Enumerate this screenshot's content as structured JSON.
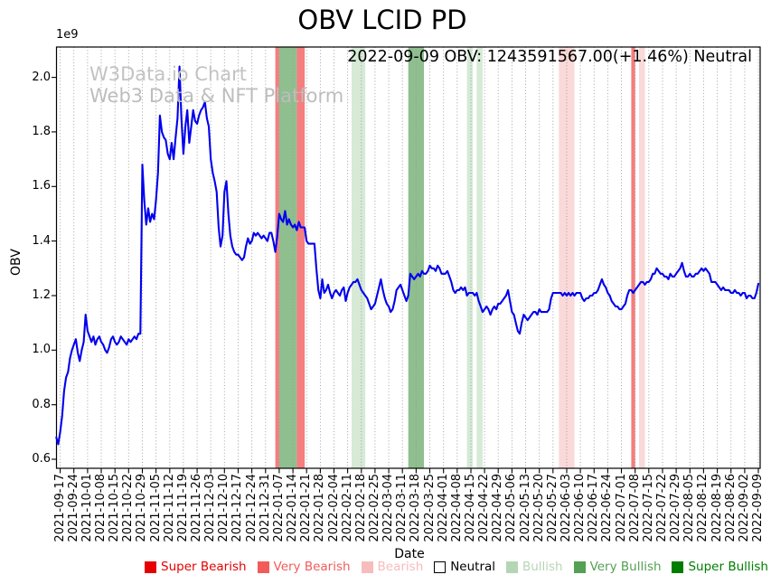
{
  "title": "OBV LCID PD",
  "subtitle": "2022-09-09 OBV: 1243591567.00(+1.46%) Neutral",
  "status": {
    "date": "2022-09-09",
    "obv_value": "1243591567.00",
    "change_pct": "+1.46%",
    "signal": "Neutral"
  },
  "watermark": {
    "line1": "W3Data.io Chart",
    "line2": "Web3 Data & NFT Platform"
  },
  "chart_data": {
    "type": "line",
    "title": "OBV LCID PD",
    "xlabel": "Date",
    "ylabel": "OBV",
    "y_offset_label": "1e9",
    "y_unit": 1000000000,
    "ylim": [
      0.6,
      2.11
    ],
    "yticks": [
      0.6,
      0.8,
      1.0,
      1.2,
      1.4,
      1.6,
      1.8,
      2.0
    ],
    "grid": "vertical-dotted",
    "grid_color": "#999999",
    "line_color": "#0000ee",
    "series_name": "OBV",
    "x_unit": "days since 2021-09-17",
    "xticks": [
      "2021-09-17",
      "2021-09-24",
      "2021-10-01",
      "2021-10-08",
      "2021-10-15",
      "2021-10-22",
      "2021-10-29",
      "2021-11-05",
      "2021-11-12",
      "2021-11-19",
      "2021-11-26",
      "2021-12-03",
      "2021-12-10",
      "2021-12-17",
      "2021-12-24",
      "2021-12-31",
      "2022-01-07",
      "2022-01-14",
      "2022-01-21",
      "2022-01-28",
      "2022-02-04",
      "2022-02-11",
      "2022-02-18",
      "2022-02-25",
      "2022-03-04",
      "2022-03-11",
      "2022-03-18",
      "2022-03-25",
      "2022-04-01",
      "2022-04-08",
      "2022-04-15",
      "2022-04-22",
      "2022-04-29",
      "2022-05-06",
      "2022-05-13",
      "2022-05-20",
      "2022-05-27",
      "2022-06-03",
      "2022-06-10",
      "2022-06-17",
      "2022-06-24",
      "2022-07-01",
      "2022-07-08",
      "2022-07-15",
      "2022-07-22",
      "2022-07-29",
      "2022-08-05",
      "2022-08-12",
      "2022-08-19",
      "2022-08-26",
      "2022-09-02",
      "2022-09-09"
    ],
    "band_colors": {
      "bearish": "#fad9d9",
      "very-bearish": "#f57e7e",
      "bullish": "#d6ead6",
      "very-bullish": "#8fbe8f"
    },
    "bands": [
      {
        "start": 110,
        "end": 112,
        "type": "very-bearish"
      },
      {
        "start": 112,
        "end": 121,
        "type": "very-bullish"
      },
      {
        "start": 121,
        "end": 125,
        "type": "very-bearish"
      },
      {
        "start": 149,
        "end": 156,
        "type": "bullish"
      },
      {
        "start": 178,
        "end": 186,
        "type": "very-bullish"
      },
      {
        "start": 208,
        "end": 211,
        "type": "bullish"
      },
      {
        "start": 213,
        "end": 216,
        "type": "bullish"
      },
      {
        "start": 255,
        "end": 263,
        "type": "bearish"
      },
      {
        "start": 292,
        "end": 294,
        "type": "very-bearish"
      },
      {
        "start": 296,
        "end": 299,
        "type": "bearish"
      }
    ],
    "points": [
      [
        -2,
        0.68
      ],
      [
        -1,
        0.655
      ],
      [
        0,
        0.7
      ],
      [
        1,
        0.76
      ],
      [
        2,
        0.85
      ],
      [
        3,
        0.9
      ],
      [
        4,
        0.92
      ],
      [
        5,
        0.97
      ],
      [
        6,
        1.0
      ],
      [
        7,
        1.02
      ],
      [
        8,
        1.04
      ],
      [
        9,
        0.99
      ],
      [
        10,
        0.96
      ],
      [
        11,
        1.0
      ],
      [
        12,
        1.03
      ],
      [
        13,
        1.13
      ],
      [
        14,
        1.07
      ],
      [
        15,
        1.05
      ],
      [
        16,
        1.03
      ],
      [
        17,
        1.05
      ],
      [
        18,
        1.02
      ],
      [
        19,
        1.04
      ],
      [
        20,
        1.05
      ],
      [
        21,
        1.03
      ],
      [
        22,
        1.02
      ],
      [
        23,
        1.0
      ],
      [
        24,
        0.99
      ],
      [
        25,
        1.01
      ],
      [
        26,
        1.04
      ],
      [
        27,
        1.05
      ],
      [
        28,
        1.03
      ],
      [
        29,
        1.02
      ],
      [
        30,
        1.03
      ],
      [
        31,
        1.05
      ],
      [
        32,
        1.04
      ],
      [
        33,
        1.03
      ],
      [
        34,
        1.02
      ],
      [
        35,
        1.04
      ],
      [
        36,
        1.03
      ],
      [
        37,
        1.04
      ],
      [
        38,
        1.05
      ],
      [
        39,
        1.04
      ],
      [
        40,
        1.06
      ],
      [
        41,
        1.06
      ],
      [
        42,
        1.68
      ],
      [
        43,
        1.55
      ],
      [
        44,
        1.46
      ],
      [
        45,
        1.52
      ],
      [
        46,
        1.47
      ],
      [
        47,
        1.5
      ],
      [
        48,
        1.48
      ],
      [
        49,
        1.55
      ],
      [
        50,
        1.65
      ],
      [
        51,
        1.86
      ],
      [
        52,
        1.8
      ],
      [
        53,
        1.78
      ],
      [
        54,
        1.77
      ],
      [
        55,
        1.72
      ],
      [
        56,
        1.7
      ],
      [
        57,
        1.76
      ],
      [
        58,
        1.7
      ],
      [
        59,
        1.78
      ],
      [
        60,
        1.85
      ],
      [
        61,
        2.04
      ],
      [
        62,
        1.85
      ],
      [
        63,
        1.72
      ],
      [
        64,
        1.82
      ],
      [
        65,
        1.88
      ],
      [
        66,
        1.76
      ],
      [
        67,
        1.82
      ],
      [
        68,
        1.88
      ],
      [
        69,
        1.84
      ],
      [
        70,
        1.83
      ],
      [
        71,
        1.86
      ],
      [
        72,
        1.88
      ],
      [
        73,
        1.89
      ],
      [
        74,
        1.91
      ],
      [
        75,
        1.85
      ],
      [
        76,
        1.82
      ],
      [
        77,
        1.7
      ],
      [
        78,
        1.65
      ],
      [
        79,
        1.62
      ],
      [
        80,
        1.58
      ],
      [
        81,
        1.45
      ],
      [
        82,
        1.38
      ],
      [
        83,
        1.42
      ],
      [
        84,
        1.58
      ],
      [
        85,
        1.62
      ],
      [
        86,
        1.5
      ],
      [
        87,
        1.42
      ],
      [
        88,
        1.38
      ],
      [
        89,
        1.36
      ],
      [
        90,
        1.35
      ],
      [
        91,
        1.35
      ],
      [
        92,
        1.34
      ],
      [
        93,
        1.33
      ],
      [
        94,
        1.34
      ],
      [
        95,
        1.38
      ],
      [
        96,
        1.41
      ],
      [
        97,
        1.39
      ],
      [
        98,
        1.4
      ],
      [
        99,
        1.43
      ],
      [
        100,
        1.42
      ],
      [
        101,
        1.43
      ],
      [
        102,
        1.42
      ],
      [
        103,
        1.41
      ],
      [
        104,
        1.42
      ],
      [
        105,
        1.41
      ],
      [
        106,
        1.4
      ],
      [
        107,
        1.43
      ],
      [
        108,
        1.43
      ],
      [
        109,
        1.4
      ],
      [
        110,
        1.36
      ],
      [
        111,
        1.42
      ],
      [
        112,
        1.5
      ],
      [
        113,
        1.48
      ],
      [
        114,
        1.47
      ],
      [
        115,
        1.51
      ],
      [
        116,
        1.46
      ],
      [
        117,
        1.48
      ],
      [
        118,
        1.46
      ],
      [
        119,
        1.45
      ],
      [
        120,
        1.46
      ],
      [
        121,
        1.44
      ],
      [
        122,
        1.47
      ],
      [
        123,
        1.45
      ],
      [
        124,
        1.45
      ],
      [
        125,
        1.45
      ],
      [
        126,
        1.4
      ],
      [
        127,
        1.39
      ],
      [
        128,
        1.39
      ],
      [
        129,
        1.39
      ],
      [
        130,
        1.39
      ],
      [
        131,
        1.3
      ],
      [
        132,
        1.22
      ],
      [
        133,
        1.19
      ],
      [
        134,
        1.26
      ],
      [
        135,
        1.21
      ],
      [
        136,
        1.22
      ],
      [
        137,
        1.24
      ],
      [
        138,
        1.21
      ],
      [
        139,
        1.19
      ],
      [
        140,
        1.21
      ],
      [
        141,
        1.22
      ],
      [
        142,
        1.21
      ],
      [
        143,
        1.2
      ],
      [
        144,
        1.22
      ],
      [
        145,
        1.23
      ],
      [
        146,
        1.18
      ],
      [
        147,
        1.21
      ],
      [
        148,
        1.23
      ],
      [
        149,
        1.24
      ],
      [
        150,
        1.25
      ],
      [
        151,
        1.25
      ],
      [
        152,
        1.26
      ],
      [
        153,
        1.24
      ],
      [
        154,
        1.22
      ],
      [
        155,
        1.21
      ],
      [
        156,
        1.2
      ],
      [
        157,
        1.19
      ],
      [
        158,
        1.17
      ],
      [
        159,
        1.15
      ],
      [
        160,
        1.16
      ],
      [
        161,
        1.17
      ],
      [
        162,
        1.2
      ],
      [
        163,
        1.23
      ],
      [
        164,
        1.26
      ],
      [
        165,
        1.22
      ],
      [
        166,
        1.19
      ],
      [
        167,
        1.17
      ],
      [
        168,
        1.16
      ],
      [
        169,
        1.14
      ],
      [
        170,
        1.15
      ],
      [
        171,
        1.18
      ],
      [
        172,
        1.22
      ],
      [
        173,
        1.23
      ],
      [
        174,
        1.24
      ],
      [
        175,
        1.22
      ],
      [
        176,
        1.2
      ],
      [
        177,
        1.18
      ],
      [
        178,
        1.2
      ],
      [
        179,
        1.28
      ],
      [
        180,
        1.27
      ],
      [
        181,
        1.26
      ],
      [
        182,
        1.27
      ],
      [
        183,
        1.28
      ],
      [
        184,
        1.27
      ],
      [
        185,
        1.29
      ],
      [
        186,
        1.28
      ],
      [
        187,
        1.28
      ],
      [
        188,
        1.29
      ],
      [
        189,
        1.31
      ],
      [
        190,
        1.3
      ],
      [
        191,
        1.3
      ],
      [
        192,
        1.29
      ],
      [
        193,
        1.31
      ],
      [
        194,
        1.3
      ],
      [
        195,
        1.28
      ],
      [
        196,
        1.28
      ],
      [
        197,
        1.28
      ],
      [
        198,
        1.29
      ],
      [
        199,
        1.27
      ],
      [
        200,
        1.25
      ],
      [
        201,
        1.22
      ],
      [
        202,
        1.21
      ],
      [
        203,
        1.22
      ],
      [
        204,
        1.22
      ],
      [
        205,
        1.23
      ],
      [
        206,
        1.22
      ],
      [
        207,
        1.23
      ],
      [
        208,
        1.2
      ],
      [
        209,
        1.21
      ],
      [
        210,
        1.21
      ],
      [
        211,
        1.21
      ],
      [
        212,
        1.2
      ],
      [
        213,
        1.21
      ],
      [
        214,
        1.18
      ],
      [
        215,
        1.16
      ],
      [
        216,
        1.14
      ],
      [
        217,
        1.15
      ],
      [
        218,
        1.16
      ],
      [
        219,
        1.15
      ],
      [
        220,
        1.13
      ],
      [
        221,
        1.15
      ],
      [
        222,
        1.16
      ],
      [
        223,
        1.15
      ],
      [
        224,
        1.17
      ],
      [
        225,
        1.17
      ],
      [
        226,
        1.18
      ],
      [
        227,
        1.19
      ],
      [
        228,
        1.2
      ],
      [
        229,
        1.22
      ],
      [
        230,
        1.18
      ],
      [
        231,
        1.14
      ],
      [
        232,
        1.13
      ],
      [
        233,
        1.1
      ],
      [
        234,
        1.07
      ],
      [
        235,
        1.06
      ],
      [
        236,
        1.1
      ],
      [
        237,
        1.13
      ],
      [
        238,
        1.12
      ],
      [
        239,
        1.11
      ],
      [
        240,
        1.12
      ],
      [
        241,
        1.13
      ],
      [
        242,
        1.14
      ],
      [
        243,
        1.14
      ],
      [
        244,
        1.13
      ],
      [
        245,
        1.15
      ],
      [
        246,
        1.14
      ],
      [
        247,
        1.14
      ],
      [
        248,
        1.14
      ],
      [
        249,
        1.14
      ],
      [
        250,
        1.15
      ],
      [
        251,
        1.19
      ],
      [
        252,
        1.21
      ],
      [
        253,
        1.21
      ],
      [
        254,
        1.21
      ],
      [
        255,
        1.21
      ],
      [
        256,
        1.21
      ],
      [
        257,
        1.2
      ],
      [
        258,
        1.21
      ],
      [
        259,
        1.2
      ],
      [
        260,
        1.21
      ],
      [
        261,
        1.2
      ],
      [
        262,
        1.21
      ],
      [
        263,
        1.2
      ],
      [
        264,
        1.21
      ],
      [
        265,
        1.21
      ],
      [
        266,
        1.21
      ],
      [
        267,
        1.19
      ],
      [
        268,
        1.18
      ],
      [
        269,
        1.19
      ],
      [
        270,
        1.19
      ],
      [
        271,
        1.2
      ],
      [
        272,
        1.2
      ],
      [
        273,
        1.21
      ],
      [
        274,
        1.21
      ],
      [
        275,
        1.22
      ],
      [
        276,
        1.24
      ],
      [
        277,
        1.26
      ],
      [
        278,
        1.24
      ],
      [
        279,
        1.23
      ],
      [
        280,
        1.21
      ],
      [
        281,
        1.2
      ],
      [
        282,
        1.18
      ],
      [
        283,
        1.17
      ],
      [
        284,
        1.16
      ],
      [
        285,
        1.16
      ],
      [
        286,
        1.15
      ],
      [
        287,
        1.15
      ],
      [
        288,
        1.16
      ],
      [
        289,
        1.17
      ],
      [
        290,
        1.2
      ],
      [
        291,
        1.22
      ],
      [
        292,
        1.22
      ],
      [
        293,
        1.21
      ],
      [
        294,
        1.22
      ],
      [
        295,
        1.23
      ],
      [
        296,
        1.24
      ],
      [
        297,
        1.25
      ],
      [
        298,
        1.25
      ],
      [
        299,
        1.24
      ],
      [
        300,
        1.25
      ],
      [
        301,
        1.25
      ],
      [
        302,
        1.26
      ],
      [
        303,
        1.28
      ],
      [
        304,
        1.28
      ],
      [
        305,
        1.3
      ],
      [
        306,
        1.29
      ],
      [
        307,
        1.28
      ],
      [
        308,
        1.28
      ],
      [
        309,
        1.27
      ],
      [
        310,
        1.27
      ],
      [
        311,
        1.26
      ],
      [
        312,
        1.28
      ],
      [
        313,
        1.27
      ],
      [
        314,
        1.27
      ],
      [
        315,
        1.28
      ],
      [
        316,
        1.29
      ],
      [
        317,
        1.3
      ],
      [
        318,
        1.32
      ],
      [
        319,
        1.29
      ],
      [
        320,
        1.27
      ],
      [
        321,
        1.27
      ],
      [
        322,
        1.28
      ],
      [
        323,
        1.27
      ],
      [
        324,
        1.27
      ],
      [
        325,
        1.28
      ],
      [
        326,
        1.28
      ],
      [
        327,
        1.29
      ],
      [
        328,
        1.3
      ],
      [
        329,
        1.29
      ],
      [
        330,
        1.3
      ],
      [
        331,
        1.29
      ],
      [
        332,
        1.28
      ],
      [
        333,
        1.25
      ],
      [
        334,
        1.25
      ],
      [
        335,
        1.25
      ],
      [
        336,
        1.24
      ],
      [
        337,
        1.23
      ],
      [
        338,
        1.22
      ],
      [
        339,
        1.23
      ],
      [
        340,
        1.22
      ],
      [
        341,
        1.22
      ],
      [
        342,
        1.22
      ],
      [
        343,
        1.21
      ],
      [
        344,
        1.21
      ],
      [
        345,
        1.22
      ],
      [
        346,
        1.21
      ],
      [
        347,
        1.21
      ],
      [
        348,
        1.2
      ],
      [
        349,
        1.21
      ],
      [
        350,
        1.21
      ],
      [
        351,
        1.19
      ],
      [
        352,
        1.2
      ],
      [
        353,
        1.2
      ],
      [
        354,
        1.19
      ],
      [
        355,
        1.19
      ],
      [
        356,
        1.21
      ],
      [
        357,
        1.2436
      ]
    ]
  },
  "legend": {
    "items": [
      {
        "label": "Super Bearish",
        "color": "#e60000",
        "text_color": "#e60000",
        "border": false
      },
      {
        "label": "Very Bearish",
        "color": "#f35b5b",
        "text_color": "#f35b5b",
        "border": false
      },
      {
        "label": "Bearish",
        "color": "#f7bcbc",
        "text_color": "#f7bcbc",
        "border": false
      },
      {
        "label": "Neutral",
        "color": "#ffffff",
        "text_color": "#000000",
        "border": true
      },
      {
        "label": "Bullish",
        "color": "#b5d6b5",
        "text_color": "#b5d6b5",
        "border": false
      },
      {
        "label": "Very Bullish",
        "color": "#54a054",
        "text_color": "#54a054",
        "border": false
      },
      {
        "label": "Super Bullish",
        "color": "#007d00",
        "text_color": "#007d00",
        "border": false
      }
    ]
  }
}
